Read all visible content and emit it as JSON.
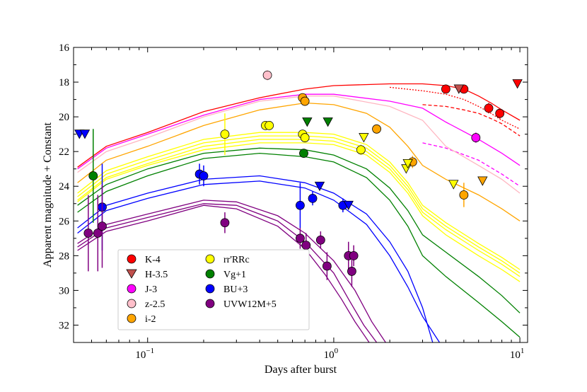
{
  "chart_data": {
    "type": "scatter",
    "title": "",
    "xlabel": "Days after burst",
    "ylabel": "Apparent magnitude + Constant",
    "xscale": "log",
    "xlim": [
      0.04,
      11
    ],
    "ylim": [
      33,
      16
    ],
    "x_ticks": [
      {
        "value": 0.1,
        "base": "10",
        "exp": "−1"
      },
      {
        "value": 1,
        "base": "10",
        "exp": "0"
      },
      {
        "value": 10,
        "base": "10",
        "exp": "1"
      }
    ],
    "y_ticks": [
      16,
      18,
      20,
      22,
      24,
      26,
      28,
      30,
      32
    ],
    "legend_position": "bottom-left",
    "series": [
      {
        "name": "K-4",
        "color": "#ff0000",
        "points": [
          {
            "x": 4.0,
            "y": 18.4,
            "err": 0.25
          },
          {
            "x": 5.0,
            "y": 18.4,
            "err": 0.25
          },
          {
            "x": 6.8,
            "y": 19.5,
            "err": 0.3
          },
          {
            "x": 7.8,
            "y": 19.8,
            "err": 0.3
          }
        ],
        "upper_limits": [
          {
            "x": 9.7,
            "y": 18.1
          }
        ]
      },
      {
        "name": "H-3.5",
        "color": "#c0504d",
        "points": [],
        "upper_limits": [
          {
            "x": 4.7,
            "y": 18.4
          }
        ]
      },
      {
        "name": "J-3",
        "color": "#ff00ff",
        "points": [
          {
            "x": 5.8,
            "y": 21.2,
            "err": 0.3
          }
        ],
        "upper_limits": []
      },
      {
        "name": "z-2.5",
        "color": "#ffc0cb",
        "points": [
          {
            "x": 0.44,
            "y": 17.6,
            "err": 0.3
          }
        ],
        "upper_limits": []
      },
      {
        "name": "i-2",
        "color": "#ffa500",
        "points": [
          {
            "x": 0.68,
            "y": 18.9,
            "err": 0.15
          },
          {
            "x": 0.7,
            "y": 19.1,
            "err": 0.15
          },
          {
            "x": 1.7,
            "y": 20.7,
            "err": 0.2
          },
          {
            "x": 2.65,
            "y": 22.6,
            "err": 0.35
          },
          {
            "x": 5.0,
            "y": 24.5,
            "err": 0.7
          }
        ],
        "upper_limits": [
          {
            "x": 6.3,
            "y": 23.7
          }
        ]
      },
      {
        "name": "rr'RRc",
        "color": "#ffff00",
        "points": [
          {
            "x": 0.26,
            "y": 21.0,
            "err": 1.2
          },
          {
            "x": 0.43,
            "y": 20.5,
            "err": 0.15
          },
          {
            "x": 0.45,
            "y": 20.5,
            "err": 0.15
          },
          {
            "x": 0.68,
            "y": 21.0,
            "err": 0.2
          },
          {
            "x": 0.7,
            "y": 21.2,
            "err": 0.2
          },
          {
            "x": 1.4,
            "y": 21.9,
            "err": 0.3
          }
        ],
        "upper_limits": [
          {
            "x": 1.45,
            "y": 21.2
          },
          {
            "x": 2.45,
            "y": 23.0
          },
          {
            "x": 2.5,
            "y": 22.7
          },
          {
            "x": 4.4,
            "y": 23.9
          }
        ]
      },
      {
        "name": "Vg+1",
        "color": "#008000",
        "points": [
          {
            "x": 0.051,
            "y": 23.4,
            "err": 2.7
          },
          {
            "x": 0.69,
            "y": 22.1,
            "err": 0.2
          }
        ],
        "upper_limits": [
          {
            "x": 0.72,
            "y": 20.3
          },
          {
            "x": 0.93,
            "y": 20.3
          }
        ]
      },
      {
        "name": "BU+3",
        "color": "#0000ff",
        "points": [
          {
            "x": 0.057,
            "y": 25.2,
            "err": 2.5
          },
          {
            "x": 0.19,
            "y": 23.3,
            "err": 0.6
          },
          {
            "x": 0.2,
            "y": 23.4,
            "err": 0.6
          },
          {
            "x": 0.66,
            "y": 25.1,
            "err": 1.3
          },
          {
            "x": 0.77,
            "y": 24.7,
            "err": 0.4
          },
          {
            "x": 1.12,
            "y": 25.1,
            "err": 0.4
          }
        ],
        "upper_limits": [
          {
            "x": 0.043,
            "y": 21.0
          },
          {
            "x": 0.046,
            "y": 21.0
          },
          {
            "x": 0.84,
            "y": 24.0
          },
          {
            "x": 1.2,
            "y": 25.1
          }
        ]
      },
      {
        "name": "UVW12M+5",
        "color": "#800080",
        "points": [
          {
            "x": 0.048,
            "y": 26.7,
            "err": 2.2
          },
          {
            "x": 0.054,
            "y": 26.7,
            "err": 2.2
          },
          {
            "x": 0.057,
            "y": 26.3,
            "err": 2.4
          },
          {
            "x": 0.26,
            "y": 26.1,
            "err": 0.6
          },
          {
            "x": 0.66,
            "y": 27.0,
            "err": 0.6
          },
          {
            "x": 0.71,
            "y": 27.4,
            "err": 0.7
          },
          {
            "x": 0.85,
            "y": 27.1,
            "err": 0.5
          },
          {
            "x": 0.92,
            "y": 28.6,
            "err": 0.8
          },
          {
            "x": 1.2,
            "y": 28.0,
            "err": 0.8
          },
          {
            "x": 1.28,
            "y": 28.0,
            "err": 0.6
          },
          {
            "x": 1.25,
            "y": 28.9,
            "err": 0.9
          }
        ],
        "upper_limits": []
      }
    ],
    "model_curves": [
      {
        "band": "K",
        "color": "#ff0000",
        "style": "solid",
        "x": [
          0.042,
          0.06,
          0.1,
          0.2,
          0.4,
          0.7,
          1.0,
          2.0,
          3.0,
          4.0,
          5.0,
          6.0,
          7.0,
          8.0,
          10.0
        ],
        "y": [
          22.9,
          21.7,
          20.9,
          19.7,
          18.9,
          18.4,
          18.2,
          18.1,
          18.1,
          18.2,
          18.4,
          18.8,
          19.2,
          19.6,
          20.2
        ]
      },
      {
        "band": "K",
        "color": "#ff0000",
        "style": "dashed",
        "x": [
          3.0,
          4.0,
          5.0,
          6.0,
          7.0,
          8.0,
          10.0
        ],
        "y": [
          19.3,
          19.4,
          19.6,
          19.8,
          20.1,
          20.4,
          21.1
        ]
      },
      {
        "band": "K",
        "color": "#ff0000",
        "style": "dotted",
        "x": [
          2.0,
          3.0,
          4.0,
          5.0,
          6.0,
          7.0,
          8.0,
          10.0
        ],
        "y": [
          18.3,
          18.5,
          18.7,
          19.0,
          19.4,
          19.8,
          20.2,
          20.7
        ]
      },
      {
        "band": "J",
        "color": "#ff00ff",
        "style": "solid",
        "x": [
          0.042,
          0.06,
          0.1,
          0.2,
          0.4,
          0.7,
          1.0,
          2.0,
          3.0,
          4.0,
          6.0,
          8.0,
          10.0
        ],
        "y": [
          23.0,
          21.8,
          21.0,
          19.9,
          19.0,
          18.7,
          18.7,
          19.1,
          19.5,
          20.3,
          21.3,
          22.1,
          22.8
        ]
      },
      {
        "band": "J",
        "color": "#ff00ff",
        "style": "dashed",
        "x": [
          3.0,
          4.0,
          6.0,
          8.0,
          10.0
        ],
        "y": [
          21.5,
          21.8,
          22.5,
          23.3,
          24.0
        ]
      },
      {
        "band": "z",
        "color": "#ffb6c1",
        "style": "solid",
        "x": [
          0.042,
          0.06,
          0.1,
          0.2,
          0.4,
          0.7,
          1.0,
          2.0,
          3.0,
          4.0,
          6.0,
          8.0,
          10.0
        ],
        "y": [
          23.2,
          22.0,
          21.2,
          20.0,
          19.1,
          18.8,
          18.8,
          19.4,
          20.2,
          21.7,
          22.8,
          23.6,
          24.4
        ]
      },
      {
        "band": "i",
        "color": "#ffa500",
        "style": "solid",
        "x": [
          0.042,
          0.06,
          0.1,
          0.2,
          0.4,
          0.7,
          1.0,
          1.5,
          2.0,
          2.5,
          3.0,
          4.0,
          6.0,
          8.0,
          10.0
        ],
        "y": [
          23.8,
          22.5,
          21.7,
          20.5,
          19.6,
          19.2,
          19.3,
          19.8,
          20.6,
          21.7,
          22.8,
          23.6,
          24.5,
          25.3,
          26.0
        ]
      },
      {
        "band": "r1",
        "color": "#ffff00",
        "style": "solid",
        "x": [
          0.042,
          0.06,
          0.1,
          0.2,
          0.4,
          0.7,
          1.0,
          1.5,
          2.0,
          2.5,
          3.0,
          4.0,
          6.0,
          8.0,
          10.0
        ],
        "y": [
          24.4,
          23.1,
          22.3,
          21.3,
          20.9,
          20.9,
          21.0,
          21.6,
          22.6,
          23.8,
          25.1,
          26.1,
          27.3,
          28.1,
          28.8
        ]
      },
      {
        "band": "r2",
        "color": "#ffff00",
        "style": "solid",
        "x": [
          0.042,
          0.06,
          0.1,
          0.2,
          0.4,
          0.7,
          1.0,
          1.5,
          2.0,
          2.5,
          3.0,
          4.0,
          6.0,
          8.0,
          10.0
        ],
        "y": [
          24.6,
          23.3,
          22.5,
          21.5,
          21.1,
          21.1,
          21.2,
          21.8,
          22.8,
          24.0,
          25.3,
          26.3,
          27.5,
          28.3,
          29.0
        ]
      },
      {
        "band": "R",
        "color": "#ffff00",
        "style": "solid",
        "x": [
          0.042,
          0.06,
          0.1,
          0.2,
          0.4,
          0.7,
          1.0,
          1.5,
          2.0,
          2.5,
          3.0,
          4.0,
          6.0,
          8.0,
          10.0
        ],
        "y": [
          24.8,
          23.5,
          22.7,
          21.7,
          21.3,
          21.3,
          21.4,
          22.0,
          23.0,
          24.2,
          25.5,
          26.5,
          27.7,
          28.5,
          29.2
        ]
      },
      {
        "band": "Rc",
        "color": "#ffff00",
        "style": "solid",
        "x": [
          0.042,
          0.06,
          0.1,
          0.2,
          0.4,
          0.7,
          1.0,
          1.5,
          2.0,
          2.5,
          3.0,
          4.0,
          6.0,
          8.0,
          10.0
        ],
        "y": [
          24.9,
          23.6,
          22.8,
          21.9,
          21.5,
          21.5,
          21.6,
          22.2,
          23.2,
          24.4,
          25.7,
          26.8,
          28.0,
          28.8,
          29.5
        ]
      },
      {
        "band": "V",
        "color": "#008000",
        "style": "solid",
        "x": [
          0.042,
          0.06,
          0.1,
          0.2,
          0.4,
          0.7,
          1.0,
          1.5,
          2.0,
          2.5,
          3.0,
          4.0,
          6.0,
          8.0,
          10.0
        ],
        "y": [
          25.1,
          23.9,
          23.0,
          22.1,
          21.8,
          21.9,
          22.2,
          23.0,
          24.1,
          25.4,
          26.8,
          27.8,
          29.2,
          30.3,
          31.3
        ]
      },
      {
        "band": "g",
        "color": "#008000",
        "style": "solid",
        "x": [
          0.042,
          0.06,
          0.1,
          0.2,
          0.4,
          0.7,
          1.0,
          1.5,
          2.0,
          2.5,
          3.0,
          4.0,
          6.0,
          8.0,
          10.0
        ],
        "y": [
          25.5,
          24.3,
          23.4,
          22.4,
          22.1,
          22.3,
          22.6,
          23.5,
          24.8,
          26.3,
          28.0,
          29.2,
          30.7,
          31.8,
          32.7
        ]
      },
      {
        "band": "B",
        "color": "#0000ff",
        "style": "solid",
        "x": [
          0.042,
          0.06,
          0.1,
          0.2,
          0.4,
          0.7,
          1.0,
          1.5,
          2.0,
          2.5,
          3.0,
          3.4
        ],
        "y": [
          26.4,
          25.1,
          24.4,
          23.6,
          23.4,
          23.8,
          24.4,
          25.6,
          27.2,
          28.9,
          31.0,
          33.0
        ]
      },
      {
        "band": "U",
        "color": "#0000ff",
        "style": "solid",
        "x": [
          0.042,
          0.06,
          0.1,
          0.2,
          0.4,
          0.7,
          1.0,
          1.5,
          2.0,
          2.5,
          3.0,
          3.7
        ],
        "y": [
          26.7,
          25.4,
          24.7,
          23.9,
          23.7,
          24.1,
          24.8,
          26.2,
          28.0,
          29.8,
          31.5,
          33.0
        ]
      },
      {
        "band": "UVW1",
        "color": "#800080",
        "style": "solid",
        "x": [
          0.042,
          0.06,
          0.1,
          0.2,
          0.3,
          0.5,
          0.7,
          1.0,
          1.3,
          1.6,
          1.9
        ],
        "y": [
          27.3,
          26.2,
          25.6,
          24.8,
          24.9,
          25.7,
          26.7,
          28.3,
          30.0,
          31.8,
          33.0
        ]
      },
      {
        "band": "UVM2",
        "color": "#800080",
        "style": "solid",
        "x": [
          0.042,
          0.06,
          0.1,
          0.2,
          0.3,
          0.5,
          0.7,
          1.0,
          1.2,
          1.45,
          1.7
        ],
        "y": [
          27.5,
          26.4,
          25.8,
          25.0,
          25.1,
          26.0,
          27.2,
          29.0,
          30.5,
          32.0,
          33.0
        ]
      },
      {
        "band": "UVW2",
        "color": "#800080",
        "style": "solid",
        "x": [
          0.042,
          0.06,
          0.1,
          0.2,
          0.3,
          0.5,
          0.7,
          0.9,
          1.1,
          1.3,
          1.55
        ],
        "y": [
          27.7,
          26.6,
          26.0,
          25.1,
          25.3,
          26.3,
          27.6,
          29.1,
          30.5,
          31.8,
          33.0
        ]
      }
    ]
  }
}
